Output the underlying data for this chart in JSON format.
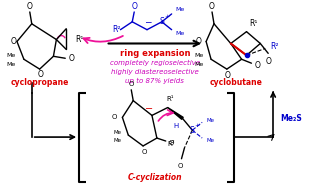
{
  "bg_color": "#ffffff",
  "red_color": "#dd0000",
  "magenta_color": "#cc00bb",
  "blue_color": "#0000cc",
  "pink_color": "#ee1199",
  "orange_red": "#ee2200",
  "text_ring_expansion": "ring expansion",
  "text_line1": "completely regioselective",
  "text_line2": "highly diastereoselective",
  "text_line3": "up to 87% yields",
  "text_cyclopropane": "cyclopropane",
  "text_cyclobutane": "cyclobutane",
  "text_c_cyclization": "C-cyclization",
  "text_me2s": "Me₂S",
  "fig_width": 3.09,
  "fig_height": 1.89,
  "dpi": 100
}
